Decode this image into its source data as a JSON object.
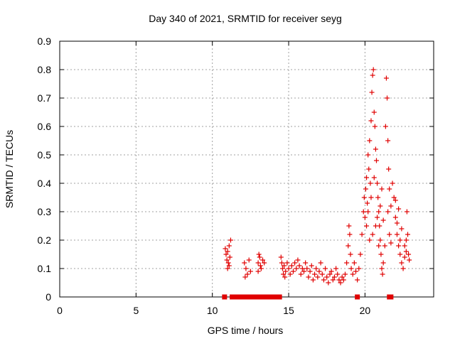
{
  "chart_data": {
    "type": "scatter",
    "title": "Day 340 of 2021, SRMTID for receiver seyg",
    "xlabel": "GPS time / hours",
    "ylabel": "SRMTID / TECUs",
    "xlim": [
      0,
      24.5
    ],
    "ylim": [
      0,
      0.9
    ],
    "xticks": [
      0,
      5,
      10,
      15,
      20
    ],
    "xtick_labels": [
      "0",
      "5",
      "10",
      "15",
      "20"
    ],
    "yticks": [
      0,
      0.1,
      0.2,
      0.3,
      0.4,
      0.5,
      0.6,
      0.7,
      0.8,
      0.9
    ],
    "ytick_labels": [
      "0",
      "0.1",
      "0.2",
      "0.3",
      "0.4",
      "0.5",
      "0.6",
      "0.7",
      "0.8",
      "0.9"
    ],
    "grid": true,
    "marker": "+",
    "color": "#e00000",
    "series": [
      {
        "name": "SRMTID",
        "points": [
          [
            10.85,
            0.17
          ],
          [
            10.9,
            0.15
          ],
          [
            10.95,
            0.13
          ],
          [
            11.0,
            0.16
          ],
          [
            11.05,
            0.12
          ],
          [
            11.1,
            0.18
          ],
          [
            11.15,
            0.14
          ],
          [
            11.2,
            0.2
          ],
          [
            11.0,
            0.1
          ],
          [
            11.1,
            0.11
          ],
          [
            12.1,
            0.12
          ],
          [
            12.2,
            0.1
          ],
          [
            12.3,
            0.08
          ],
          [
            12.4,
            0.13
          ],
          [
            12.15,
            0.07
          ],
          [
            12.5,
            0.09
          ],
          [
            13.0,
            0.12
          ],
          [
            13.05,
            0.15
          ],
          [
            13.1,
            0.14
          ],
          [
            13.15,
            0.11
          ],
          [
            13.2,
            0.1
          ],
          [
            13.3,
            0.13
          ],
          [
            13.4,
            0.12
          ],
          [
            13.0,
            0.09
          ],
          [
            14.5,
            0.14
          ],
          [
            14.55,
            0.12
          ],
          [
            14.6,
            0.1
          ],
          [
            14.65,
            0.08
          ],
          [
            14.7,
            0.11
          ],
          [
            14.75,
            0.07
          ],
          [
            14.8,
            0.09
          ],
          [
            14.9,
            0.12
          ],
          [
            15.0,
            0.1
          ],
          [
            15.1,
            0.08
          ],
          [
            15.2,
            0.11
          ],
          [
            15.3,
            0.09
          ],
          [
            15.4,
            0.12
          ],
          [
            15.5,
            0.1
          ],
          [
            15.6,
            0.13
          ],
          [
            15.7,
            0.11
          ],
          [
            15.8,
            0.08
          ],
          [
            15.9,
            0.1
          ],
          [
            16.0,
            0.09
          ],
          [
            16.1,
            0.12
          ],
          [
            16.2,
            0.1
          ],
          [
            16.3,
            0.07
          ],
          [
            16.4,
            0.09
          ],
          [
            16.5,
            0.11
          ],
          [
            16.6,
            0.06
          ],
          [
            16.7,
            0.08
          ],
          [
            16.8,
            0.1
          ],
          [
            16.9,
            0.07
          ],
          [
            17.0,
            0.09
          ],
          [
            17.1,
            0.12
          ],
          [
            17.2,
            0.08
          ],
          [
            17.3,
            0.06
          ],
          [
            17.4,
            0.1
          ],
          [
            17.5,
            0.07
          ],
          [
            17.6,
            0.05
          ],
          [
            17.7,
            0.08
          ],
          [
            17.8,
            0.09
          ],
          [
            17.9,
            0.06
          ],
          [
            18.0,
            0.07
          ],
          [
            18.1,
            0.1
          ],
          [
            18.2,
            0.08
          ],
          [
            18.3,
            0.06
          ],
          [
            18.4,
            0.05
          ],
          [
            18.5,
            0.07
          ],
          [
            18.6,
            0.06
          ],
          [
            18.7,
            0.08
          ],
          [
            18.8,
            0.12
          ],
          [
            18.9,
            0.18
          ],
          [
            18.95,
            0.25
          ],
          [
            19.0,
            0.22
          ],
          [
            19.05,
            0.15
          ],
          [
            19.1,
            0.1
          ],
          [
            19.2,
            0.08
          ],
          [
            19.3,
            0.12
          ],
          [
            19.4,
            0.09
          ],
          [
            19.5,
            0.06
          ],
          [
            19.6,
            0.1
          ],
          [
            19.7,
            0.15
          ],
          [
            19.8,
            0.22
          ],
          [
            19.9,
            0.3
          ],
          [
            19.95,
            0.35
          ],
          [
            20.0,
            0.28
          ],
          [
            20.05,
            0.38
          ],
          [
            20.1,
            0.42
          ],
          [
            20.15,
            0.33
          ],
          [
            20.2,
            0.5
          ],
          [
            20.25,
            0.45
          ],
          [
            20.3,
            0.55
          ],
          [
            20.35,
            0.4
          ],
          [
            20.4,
            0.62
          ],
          [
            20.45,
            0.72
          ],
          [
            20.5,
            0.78
          ],
          [
            20.55,
            0.8
          ],
          [
            20.6,
            0.65
          ],
          [
            20.65,
            0.6
          ],
          [
            20.7,
            0.52
          ],
          [
            20.75,
            0.48
          ],
          [
            20.8,
            0.4
          ],
          [
            20.85,
            0.35
          ],
          [
            20.9,
            0.3
          ],
          [
            20.95,
            0.25
          ],
          [
            21.0,
            0.2
          ],
          [
            21.05,
            0.15
          ],
          [
            21.1,
            0.1
          ],
          [
            21.15,
            0.08
          ],
          [
            21.2,
            0.12
          ],
          [
            21.3,
            0.18
          ],
          [
            21.35,
            0.6
          ],
          [
            21.4,
            0.77
          ],
          [
            21.45,
            0.7
          ],
          [
            21.5,
            0.55
          ],
          [
            21.55,
            0.45
          ],
          [
            21.6,
            0.38
          ],
          [
            21.7,
            0.32
          ],
          [
            21.8,
            0.4
          ],
          [
            21.9,
            0.35
          ],
          [
            22.0,
            0.28
          ],
          [
            22.1,
            0.22
          ],
          [
            22.2,
            0.18
          ],
          [
            22.3,
            0.15
          ],
          [
            22.4,
            0.12
          ],
          [
            22.5,
            0.1
          ],
          [
            22.6,
            0.14
          ],
          [
            22.7,
            0.2
          ],
          [
            22.75,
            0.3
          ],
          [
            22.8,
            0.22
          ],
          [
            22.85,
            0.15
          ],
          [
            22.9,
            0.13
          ],
          [
            20.1,
            0.25
          ],
          [
            20.2,
            0.3
          ],
          [
            20.3,
            0.2
          ],
          [
            20.4,
            0.35
          ],
          [
            20.5,
            0.22
          ],
          [
            20.6,
            0.42
          ],
          [
            20.7,
            0.25
          ],
          [
            20.8,
            0.28
          ],
          [
            20.9,
            0.18
          ],
          [
            21.0,
            0.32
          ],
          [
            21.1,
            0.38
          ],
          [
            21.2,
            0.27
          ],
          [
            21.5,
            0.3
          ],
          [
            21.6,
            0.22
          ],
          [
            21.7,
            0.19
          ],
          [
            22.0,
            0.34
          ],
          [
            22.1,
            0.26
          ],
          [
            22.2,
            0.31
          ],
          [
            22.3,
            0.2
          ],
          [
            22.4,
            0.24
          ],
          [
            22.6,
            0.18
          ],
          [
            22.7,
            0.16
          ]
        ],
        "zero_points": [
          10.8,
          11.3,
          11.5,
          11.7,
          11.9,
          12.1,
          12.3,
          12.5,
          12.7,
          12.9,
          13.2,
          13.4,
          13.6,
          13.8,
          14.0,
          14.2,
          14.4,
          19.5,
          21.6,
          21.7
        ]
      }
    ]
  }
}
